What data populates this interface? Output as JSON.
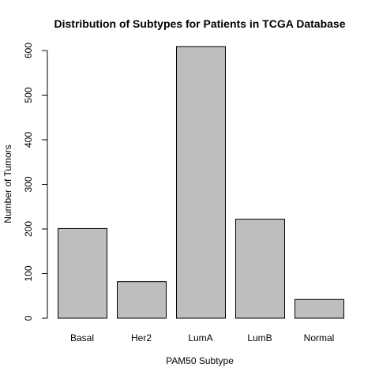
{
  "chart_data": {
    "type": "bar",
    "title": "Distribution of Subtypes for Patients in TCGA Database",
    "xlabel": "PAM50 Subtype",
    "ylabel": "Number of Tumors",
    "categories": [
      "Basal",
      "Her2",
      "LumA",
      "LumB",
      "Normal"
    ],
    "values": [
      201,
      82,
      609,
      222,
      42
    ],
    "ylim": [
      0,
      600
    ],
    "yticks": [
      0,
      100,
      200,
      300,
      400,
      500,
      600
    ],
    "ytick_labels": [
      "0",
      "100",
      "200",
      "300",
      "400",
      "500",
      "600"
    ],
    "grid": false,
    "legend": "none",
    "bar_color": "#bebebe",
    "bar_edge_color": "#000000"
  }
}
